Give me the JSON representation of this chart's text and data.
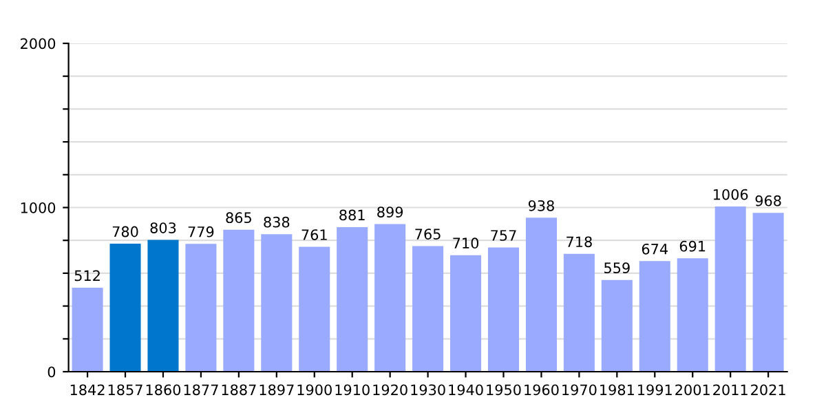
{
  "chart_data": {
    "type": "bar",
    "categories": [
      "1842",
      "1857",
      "1860",
      "1877",
      "1887",
      "1897",
      "1900",
      "1910",
      "1920",
      "1930",
      "1940",
      "1950",
      "1960",
      "1970",
      "1981",
      "1991",
      "2001",
      "2011",
      "2021"
    ],
    "values": [
      512,
      780,
      803,
      779,
      865,
      838,
      761,
      881,
      899,
      765,
      710,
      757,
      938,
      718,
      559,
      674,
      691,
      1006,
      968
    ],
    "colors": [
      "#99aaff",
      "#0077cc",
      "#0077cc",
      "#99aaff",
      "#99aaff",
      "#99aaff",
      "#99aaff",
      "#99aaff",
      "#99aaff",
      "#99aaff",
      "#99aaff",
      "#99aaff",
      "#99aaff",
      "#99aaff",
      "#99aaff",
      "#99aaff",
      "#99aaff",
      "#99aaff",
      "#99aaff"
    ],
    "ylim": [
      0,
      2000
    ],
    "yticks": [
      0,
      {
        "value": 200,
        "label": null
      },
      {
        "value": 400,
        "label": null
      },
      {
        "value": 600,
        "label": null
      },
      {
        "value": 800,
        "label": null
      },
      1000,
      {
        "value": 1200,
        "label": null
      },
      {
        "value": 1400,
        "label": null
      },
      {
        "value": 1600,
        "label": null
      },
      {
        "value": 1800,
        "label": null
      },
      2000
    ],
    "grid": "y",
    "data_labels": true
  }
}
